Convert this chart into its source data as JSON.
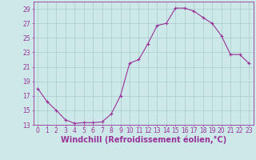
{
  "x": [
    0,
    1,
    2,
    3,
    4,
    5,
    6,
    7,
    8,
    9,
    10,
    11,
    12,
    13,
    14,
    15,
    16,
    17,
    18,
    19,
    20,
    21,
    22,
    23
  ],
  "y": [
    18.0,
    16.2,
    15.0,
    13.7,
    13.2,
    13.3,
    13.3,
    13.4,
    14.5,
    17.0,
    21.5,
    22.0,
    24.2,
    26.7,
    27.0,
    29.1,
    29.1,
    28.7,
    27.8,
    27.0,
    25.3,
    22.7,
    22.7,
    21.5
  ],
  "line_color": "#993399",
  "marker": "+",
  "bg_color": "#cce8e8",
  "grid_color": "#aacccc",
  "xlabel": "Windchill (Refroidissement éolien,°C)",
  "ylim": [
    13,
    30
  ],
  "xlim": [
    -0.5,
    23.5
  ],
  "yticks": [
    13,
    15,
    17,
    19,
    21,
    23,
    25,
    27,
    29
  ],
  "xticks": [
    0,
    1,
    2,
    3,
    4,
    5,
    6,
    7,
    8,
    9,
    10,
    11,
    12,
    13,
    14,
    15,
    16,
    17,
    18,
    19,
    20,
    21,
    22,
    23
  ],
  "tick_color": "#993399",
  "label_color": "#993399",
  "axis_color": "#993399",
  "font_size": 5.5,
  "xlabel_fontsize": 7.0,
  "linewidth": 0.8,
  "markersize": 3.0
}
